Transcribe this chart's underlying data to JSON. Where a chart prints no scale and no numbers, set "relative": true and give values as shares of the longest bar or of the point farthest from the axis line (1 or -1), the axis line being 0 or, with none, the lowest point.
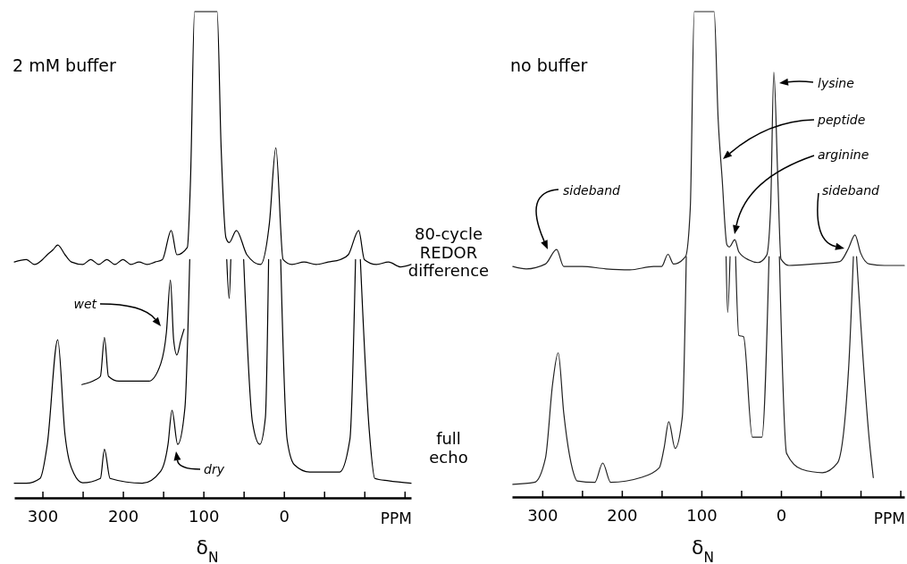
{
  "chart_data": [
    {
      "type": "line",
      "relative": true,
      "xlim": [
        335,
        -158
      ],
      "xticks": [
        300,
        200,
        100,
        0,
        {
          "value": -100,
          "label": null
        },
        {
          "value": 250,
          "label": null
        },
        {
          "value": 150,
          "label": null
        },
        {
          "value": 50,
          "label": null
        },
        {
          "value": -50,
          "label": null
        },
        {
          "value": -150,
          "label": null
        }
      ],
      "xlabel": "δ$_{N}$",
      "tick_labels": "x",
      "series": [
        {
          "color": "#000000",
          "x": [
            335,
            320,
            310,
            300,
            294,
            287,
            281,
            272,
            264,
            250,
            240,
            230,
            220,
            210,
            200,
            190,
            180,
            170,
            160,
            151,
            140,
            133,
            120,
            116,
            111,
            83,
            78,
            72,
            68,
            59,
            46,
            29,
            18,
            10,
            1,
            -10,
            -25,
            -40,
            -55,
            -70,
            -80,
            -93,
            -100,
            -115,
            -130,
            -145,
            -158
          ],
          "values": [
            0.485,
            0.49,
            0.48,
            0.49,
            0.5,
            0.51,
            0.52,
            0.5,
            0.485,
            0.48,
            0.49,
            0.48,
            0.49,
            0.48,
            0.49,
            0.48,
            0.485,
            0.48,
            0.485,
            0.49,
            0.55,
            0.5,
            0.515,
            0.656,
            1,
            1,
            0.72,
            0.535,
            0.525,
            0.55,
            0.5,
            0.48,
            0.565,
            0.72,
            0.49,
            0.48,
            0.485,
            0.48,
            0.485,
            0.49,
            0.5,
            0.55,
            0.49,
            0.48,
            0.485,
            0.475,
            0.48
          ]
        },
        {
          "color": "#000000",
          "x": [
            335,
            320,
            303,
            294,
            281,
            272,
            261,
            250,
            228,
            223,
            216,
            176,
            153,
            144,
            139,
            132,
            123,
            117,
            null,
            71,
            68,
            66,
            null,
            50,
            39,
            30,
            23,
            19,
            null,
            4,
            -4,
            -13,
            -32,
            -69,
            -82,
            -89,
            null,
            -95,
            -106,
            -113,
            -130,
            -158
          ],
          "values": [
            0.03,
            0.03,
            0.04,
            0.11,
            0.325,
            0.13,
            0.05,
            0.031,
            0.04,
            0.1,
            0.04,
            0.03,
            0.055,
            0.11,
            0.18,
            0.11,
            0.185,
            0.49,
            null,
            0.49,
            0.41,
            0.49,
            null,
            0.49,
            0.155,
            0.11,
            0.165,
            0.49,
            null,
            0.49,
            0.12,
            0.068,
            0.053,
            0.053,
            0.12,
            0.49,
            null,
            0.49,
            0.14,
            0.04,
            0.035,
            0.03
          ]
        },
        {
          "color": "#000000",
          "x": [
            251,
            234,
            228,
            223,
            218,
            205,
            168,
            153,
            146,
            141,
            137,
            133,
            128,
            124
          ],
          "values": [
            0.233,
            0.243,
            0.25,
            0.33,
            0.25,
            0.24,
            0.24,
            0.276,
            0.34,
            0.448,
            0.325,
            0.294,
            0.325,
            0.347
          ]
        }
      ],
      "annotations": [
        "2 mM buffer",
        "PPM",
        "wet",
        "dry"
      ]
    },
    {
      "type": "line",
      "relative": true,
      "xlim": [
        338,
        -155
      ],
      "xticks": [
        300,
        200,
        100,
        0,
        {
          "value": -100,
          "label": null
        },
        {
          "value": 250,
          "label": null
        },
        {
          "value": 150,
          "label": null
        },
        {
          "value": 50,
          "label": null
        },
        {
          "value": -50,
          "label": null
        },
        {
          "value": -150,
          "label": null
        }
      ],
      "xlabel": "δ$_{N}$",
      "tick_labels": "x",
      "series": [
        {
          "color": "#222222",
          "x": [
            337,
            320,
            296,
            282,
            273,
            250,
            220,
            190,
            160,
            150,
            142,
            135,
            120,
            114,
            109,
            84,
            79,
            74,
            68,
            65,
            58,
            53,
            40,
            29,
            18,
            13,
            9,
            4,
            0,
            -10,
            -40,
            -74,
            -85,
            -93,
            -100,
            -111,
            -130,
            -155
          ],
          "values": [
            0.475,
            0.47,
            0.48,
            0.51,
            0.475,
            0.475,
            0.47,
            0.468,
            0.475,
            0.475,
            0.5,
            0.48,
            0.495,
            0.595,
            1,
            1,
            0.78,
            0.657,
            0.52,
            0.515,
            0.53,
            0.505,
            0.488,
            0.483,
            0.498,
            0.597,
            0.875,
            0.657,
            0.49,
            0.477,
            0.48,
            0.485,
            0.513,
            0.54,
            0.503,
            0.48,
            0.477,
            0.477
          ]
        },
        {
          "color": "#222222",
          "x": [
            337,
            310,
            296,
            287,
            280,
            273,
            262,
            256,
            234,
            224,
            214,
            176,
            153,
            147,
            141,
            133,
            124,
            119,
            null,
            69,
            67,
            64,
            null,
            57,
            53,
            47,
            36,
            24,
            15,
            null,
            2,
            -7,
            -26,
            -52,
            -71,
            -85,
            -91,
            null,
            -95,
            -111,
            -116
          ],
          "values": [
            0.026,
            0.03,
            0.08,
            0.233,
            0.297,
            0.173,
            0.057,
            0.033,
            0.03,
            0.07,
            0.03,
            0.04,
            0.06,
            0.1,
            0.155,
            0.1,
            0.165,
            0.495,
            null,
            0.495,
            0.38,
            0.495,
            null,
            0.495,
            0.333,
            0.33,
            0.123,
            0.123,
            0.495,
            null,
            0.495,
            0.09,
            0.057,
            0.05,
            0.07,
            0.265,
            0.495,
            null,
            0.495,
            0.117,
            0.04
          ]
        }
      ],
      "annotations": [
        "no buffer",
        "80-cycle REDOR difference",
        "full echo",
        "PPM",
        "sideband",
        "lysine",
        "peptide",
        "arginine",
        "sideband"
      ]
    }
  ]
}
